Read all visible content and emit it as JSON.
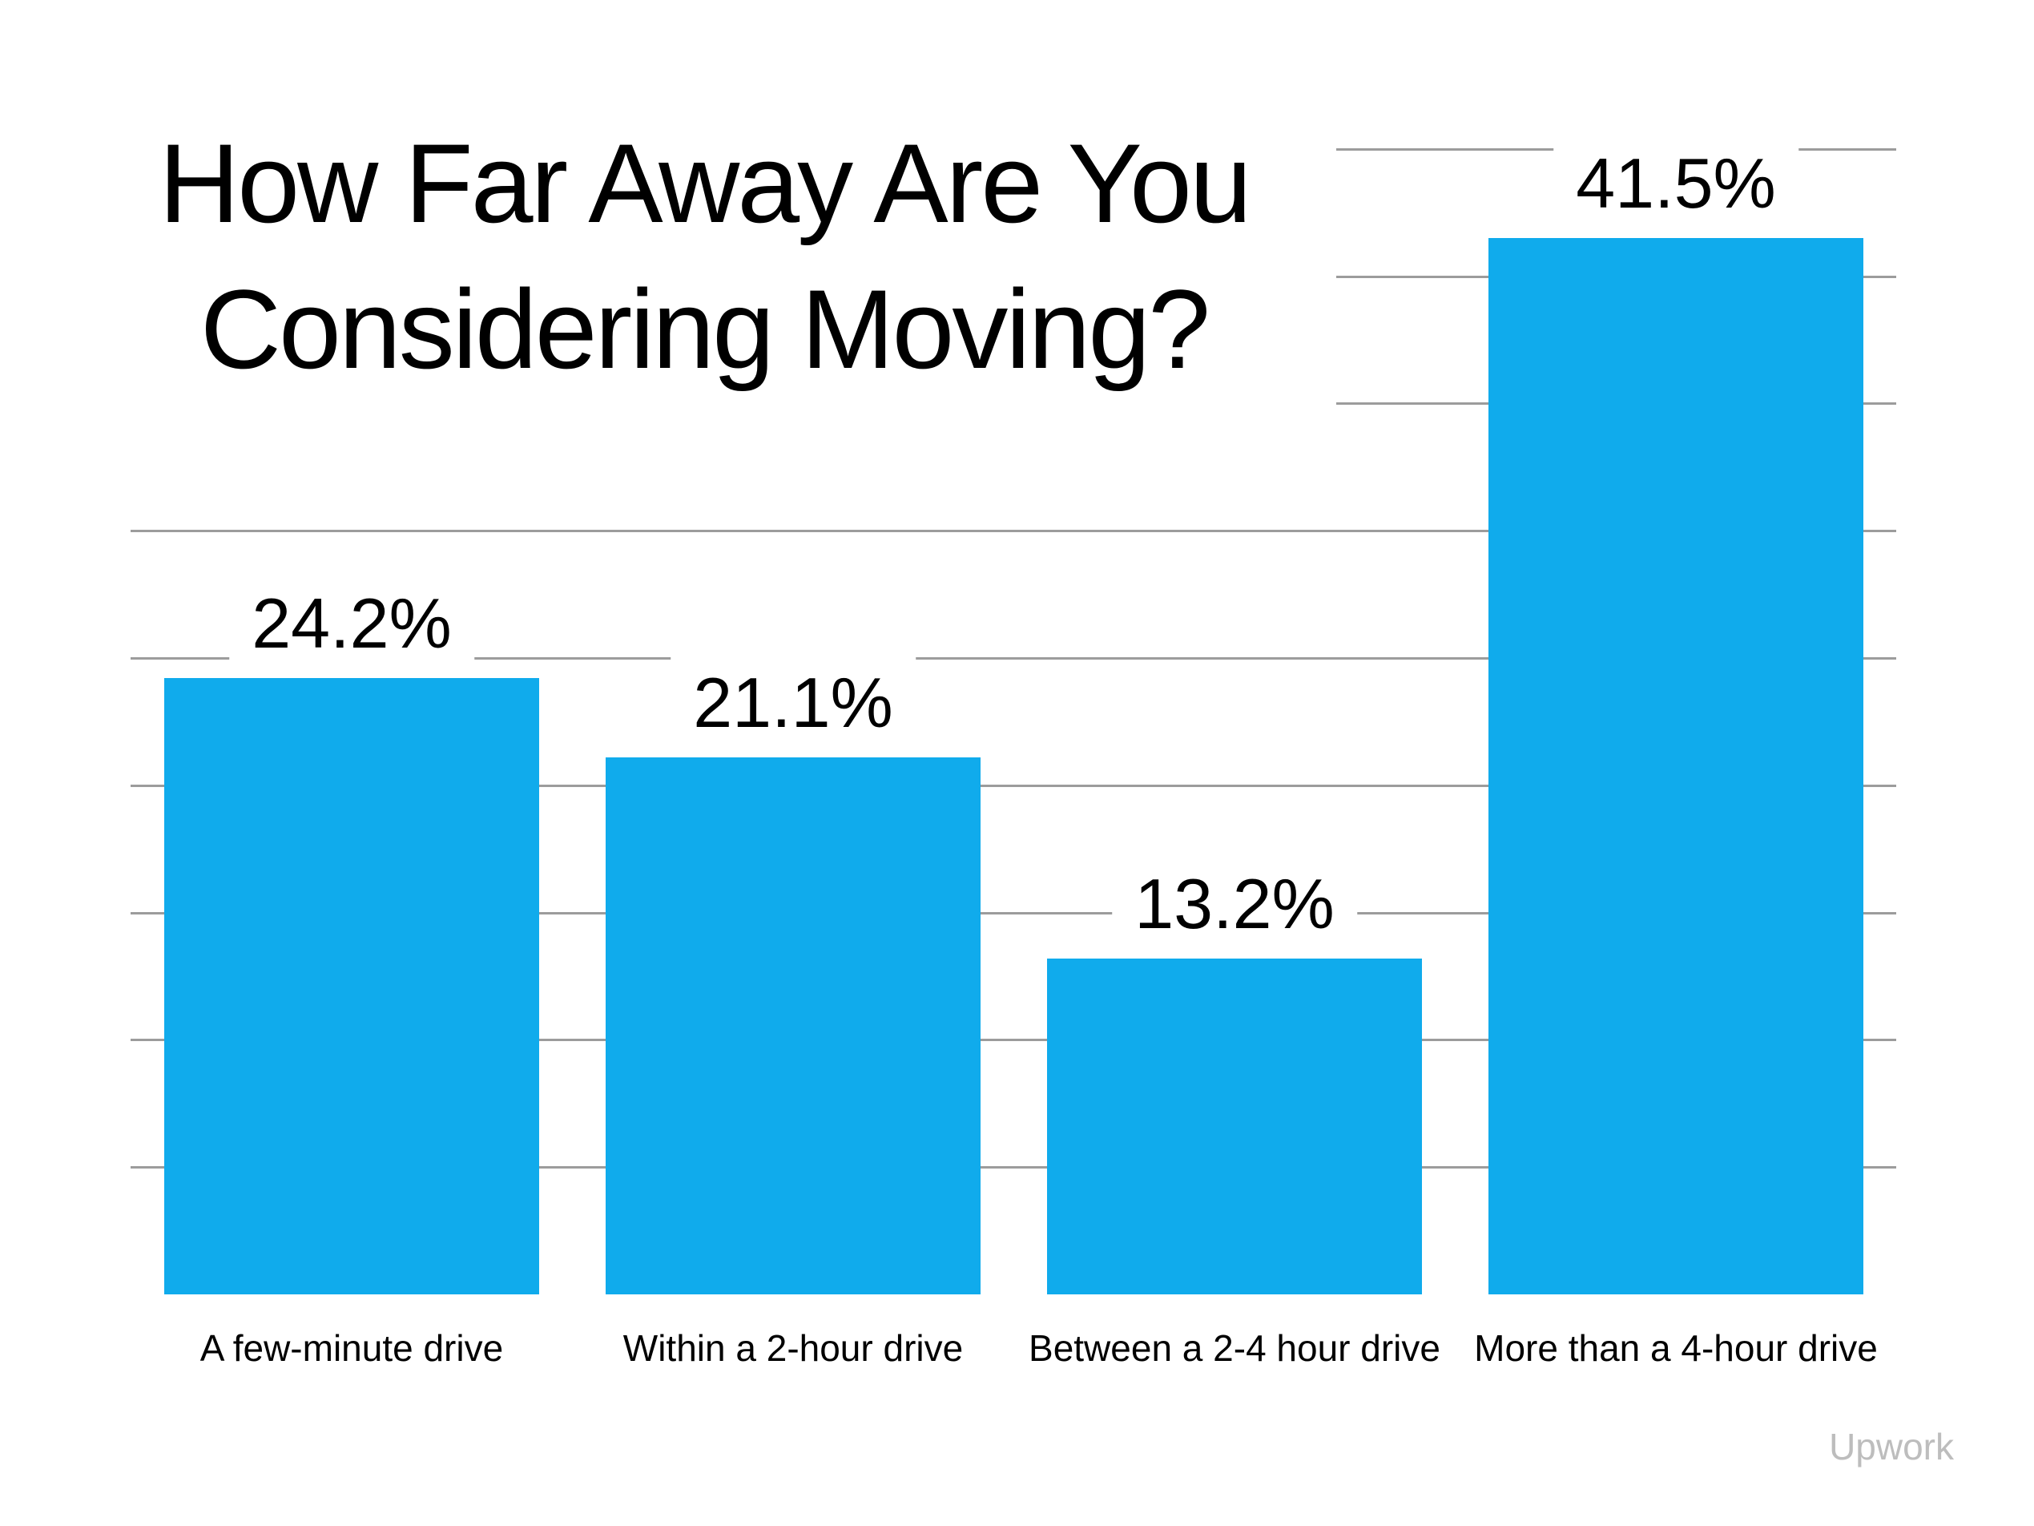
{
  "title": {
    "line1": "How Far Away Are You",
    "line2": "Considering Moving?"
  },
  "watermark": {
    "text": "Upwork"
  },
  "chart_data": {
    "type": "bar",
    "title": "How Far Away Are You Considering Moving?",
    "categories": [
      "A few-minute drive",
      "Within a 2-hour drive",
      "Between a 2-4 hour drive",
      "More than a 4-hour drive"
    ],
    "values": [
      24.2,
      21.1,
      13.2,
      41.5
    ],
    "display_values": [
      "24.2%",
      "21.1%",
      "13.2%",
      "41.5%"
    ],
    "unit": "percent",
    "ylabel": "",
    "xlabel": "",
    "ylim": [
      0,
      47
    ],
    "gridlines": {
      "min": 5,
      "max": 45,
      "step": 5,
      "axis_labels_shown": false
    },
    "legend": "none"
  },
  "colors": {
    "bar": "#10ABEC",
    "gridline": "#9C9C9C",
    "text": "#000000",
    "watermark": "#BDBDBD",
    "background": "#FFFFFF"
  }
}
